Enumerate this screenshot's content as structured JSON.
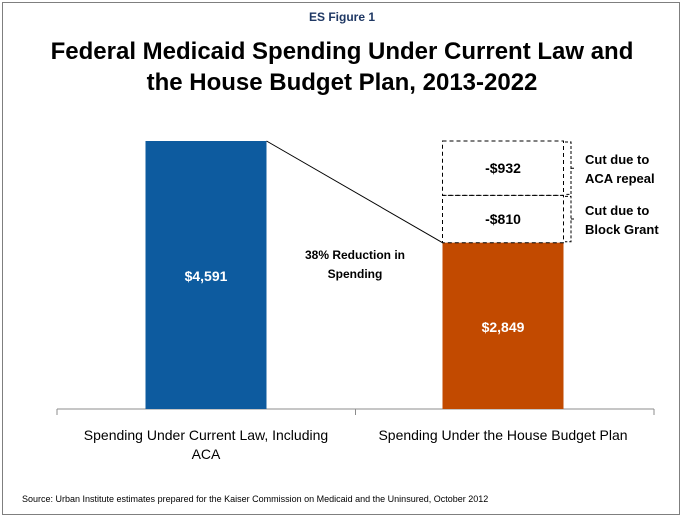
{
  "figure_label": "ES Figure 1",
  "title_line1": "Federal Medicaid Spending Under Current Law and",
  "title_line2": "the House Budget Plan, 2013-2022",
  "source": "Source: Urban Institute estimates prepared for the Kaiser Commission on Medicaid and the Uninsured, October 2012",
  "reduction_note_line1": "38% Reduction in",
  "reduction_note_line2": "Spending",
  "colors": {
    "current_law": "#0d5b9f",
    "house_plan": "#c24a00",
    "label_text": "#ffffff"
  },
  "chart_data": {
    "type": "bar",
    "categories": [
      "Spending Under Current Law, Including ACA",
      "Spending Under the House Budget Plan"
    ],
    "category_label_lines": [
      [
        "Spending Under Current Law, Including",
        "ACA"
      ],
      [
        "Spending Under the House Budget Plan"
      ]
    ],
    "values": [
      4591,
      2849
    ],
    "value_labels": [
      "$4,591",
      "$2,849"
    ],
    "stacked_cuts": [
      {
        "value": 810,
        "label": "-$810",
        "note_lines": [
          "Cut due to",
          "Block Grant"
        ]
      },
      {
        "value": 932,
        "label": "-$932",
        "note_lines": [
          "Cut due to",
          "ACA repeal"
        ]
      }
    ],
    "ylim": [
      0,
      4591
    ],
    "grid": false,
    "legend": "none"
  }
}
